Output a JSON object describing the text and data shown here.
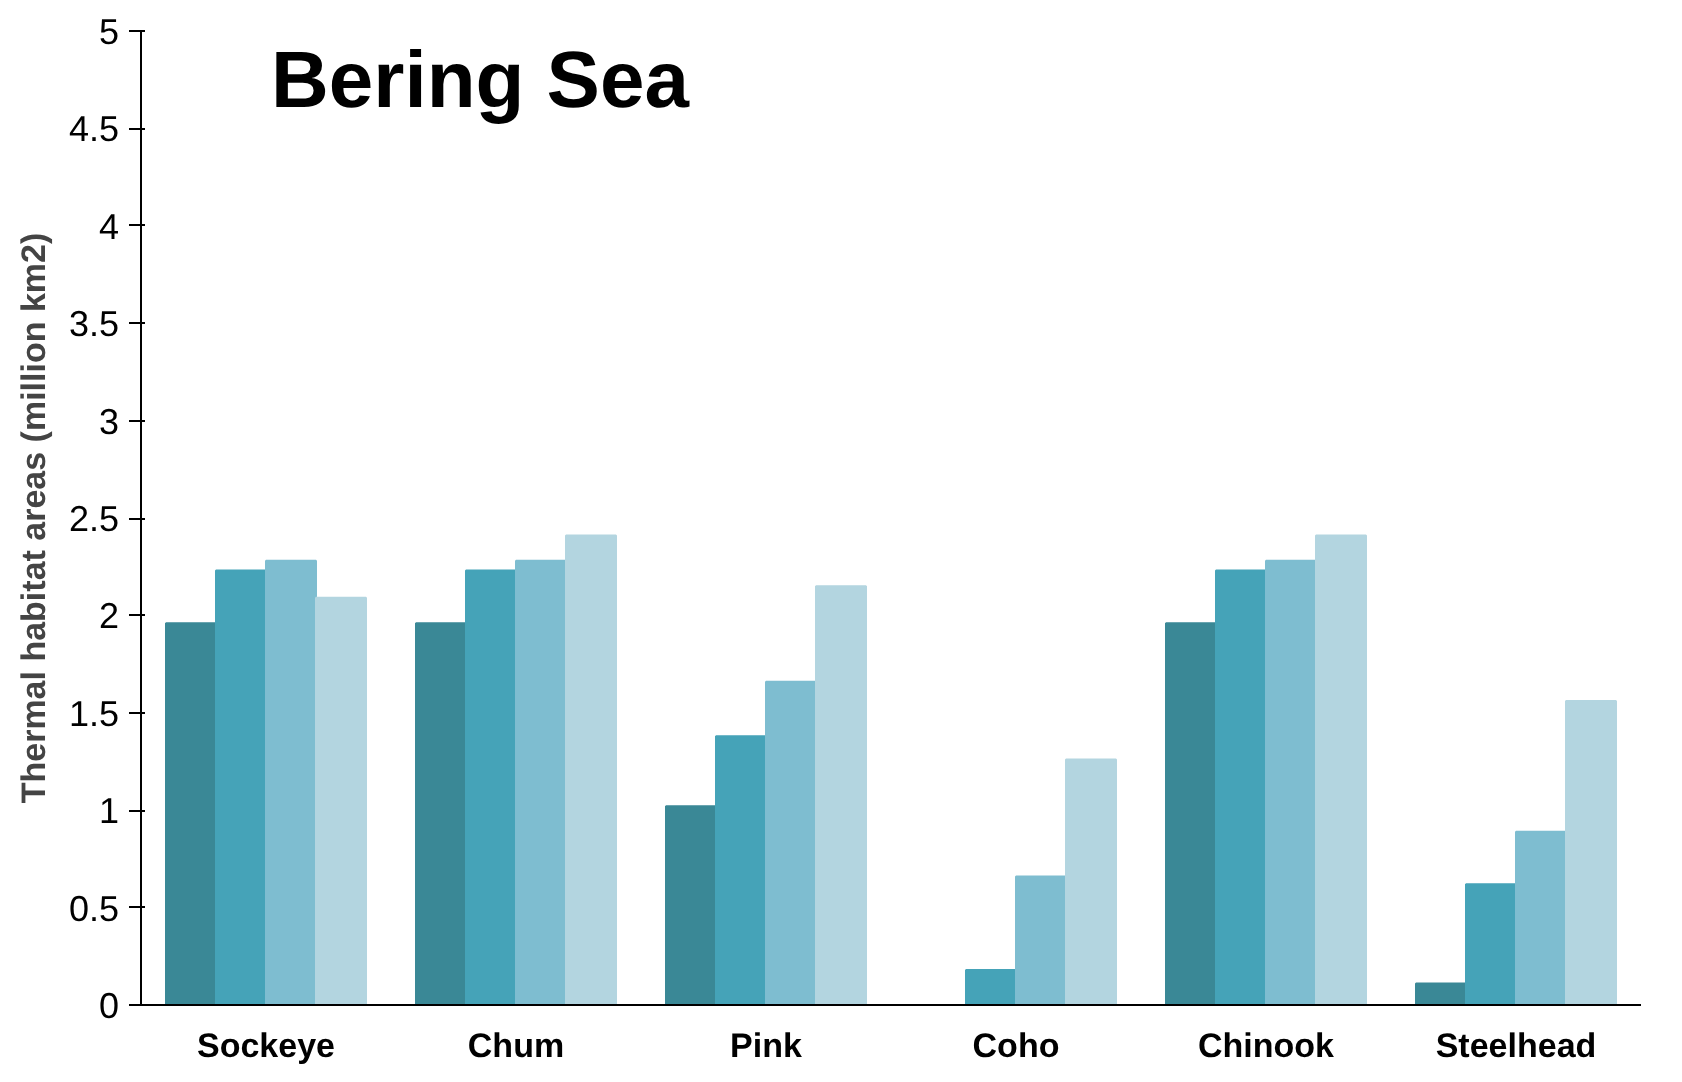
{
  "chart_data": {
    "type": "bar",
    "title": "Bering Sea",
    "ylabel": "Thermal habitat areas (million km2)",
    "categories": [
      "Sockeye",
      "Chum",
      "Pink",
      "Coho",
      "Chinook",
      "Steelhead"
    ],
    "series": [
      {
        "color": "#3a8896",
        "values": [
          1.96,
          1.96,
          1.02,
          0,
          1.96,
          0.11
        ]
      },
      {
        "color": "#45a3b8",
        "values": [
          2.23,
          2.23,
          1.38,
          0.18,
          2.23,
          0.62
        ]
      },
      {
        "color": "#7ebdd0",
        "values": [
          2.28,
          2.28,
          1.66,
          0.66,
          2.28,
          0.89
        ]
      },
      {
        "color": "#b3d5e0",
        "values": [
          2.09,
          2.41,
          2.15,
          1.26,
          2.41,
          1.56
        ]
      }
    ],
    "ylim": [
      0,
      5
    ],
    "yticks": [
      0,
      0.5,
      1,
      1.5,
      2,
      2.5,
      3,
      3.5,
      4,
      4.5,
      5
    ],
    "grid": false
  }
}
